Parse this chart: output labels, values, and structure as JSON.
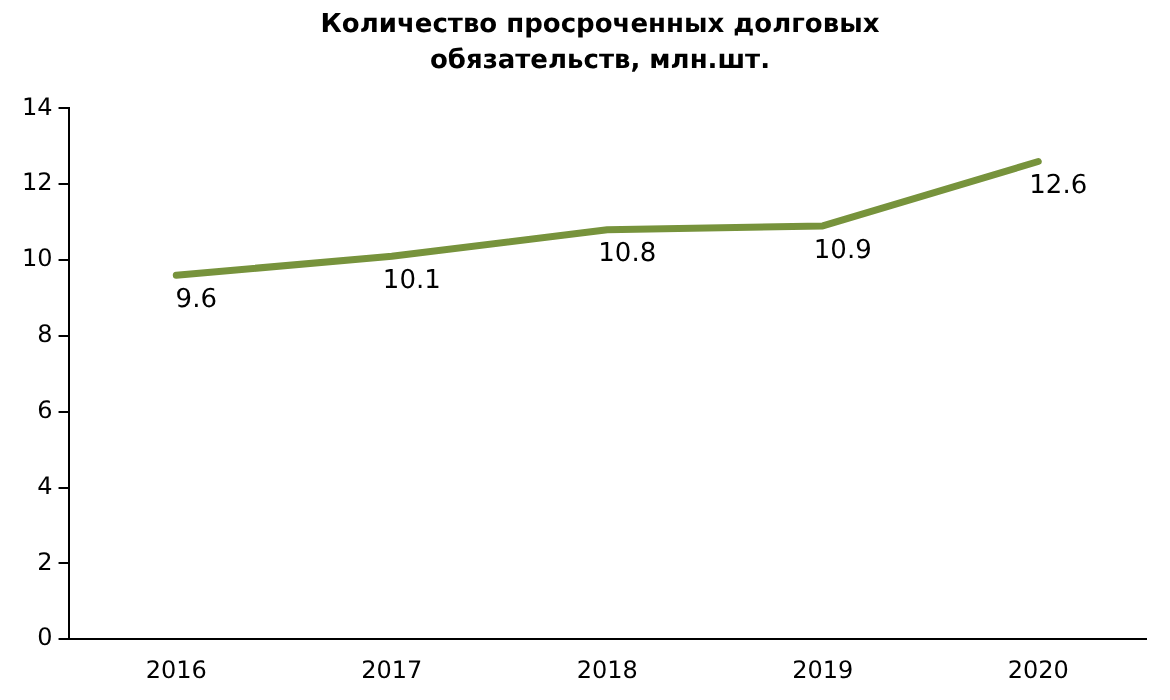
{
  "chart_data": {
    "type": "line",
    "title": "Количество просроченных долговых обязательств, млн.шт.",
    "categories": [
      "2016",
      "2017",
      "2018",
      "2019",
      "2020"
    ],
    "series": [
      {
        "color": "#77933c",
        "values": [
          9.6,
          10.1,
          10.8,
          10.9,
          12.6
        ]
      }
    ],
    "ylim": [
      0,
      14
    ],
    "yticks": [
      0,
      2,
      4,
      6,
      8,
      10,
      12,
      14
    ],
    "grid": false,
    "legend": false,
    "marker": "none",
    "line_style": "solid",
    "data_labels": true
  }
}
